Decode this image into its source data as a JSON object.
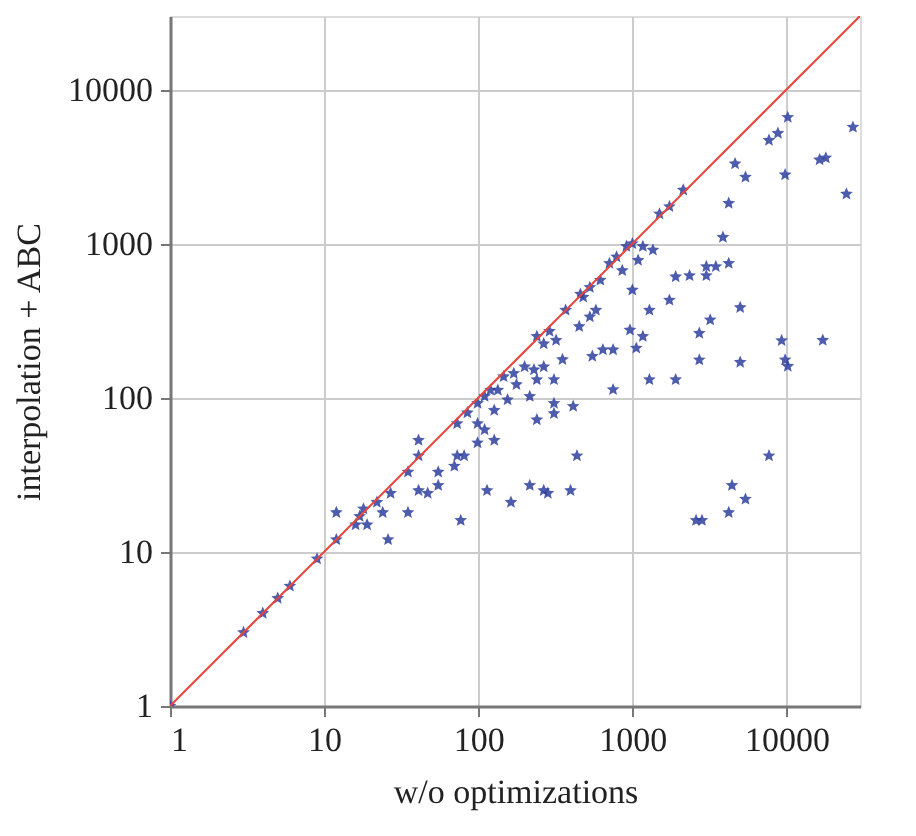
{
  "chart_data": {
    "type": "scatter",
    "xlabel": "w/o optimizations",
    "ylabel": "interpolation + ABC",
    "log": "xy",
    "xlim": [
      1,
      30000
    ],
    "ylim": [
      1,
      30000
    ],
    "xticks": [
      1,
      10,
      100,
      1000,
      10000
    ],
    "yticks": [
      1,
      10,
      100,
      1000,
      10000
    ],
    "grid": true,
    "series": [
      {
        "marker": "star",
        "color": "#2e3f9e",
        "x": [
          1,
          3,
          4,
          5,
          6,
          9,
          12,
          12,
          26,
          17,
          18,
          22,
          27,
          16,
          19,
          24,
          35,
          41,
          47,
          55,
          55,
          41,
          41,
          35,
          70,
          73,
          81,
          99,
          127,
          77,
          114,
          163,
          216,
          266,
          283,
          397,
          437,
          413,
          310,
          240,
          310,
          73,
          85,
          99,
          110,
          120,
          146,
          170,
          200,
          230,
          177,
          240,
          155,
          134,
          310,
          99,
          110,
          127,
          216,
          266,
          266,
          290,
          320,
          240,
          352,
          369,
          452,
          530,
          550,
          644,
          580,
          480,
          530,
          620,
          460,
          710,
          790,
          915,
          1000,
          1170,
          1360,
          1000,
          860,
          1090,
          1500,
          1740,
          2140,
          965,
          1170,
          1060,
          750,
          750,
          1290,
          1290,
          1740,
          1910,
          2350,
          1910,
          2720,
          2720,
          3020,
          3020,
          3480,
          4220,
          3200,
          3870,
          4220,
          4640,
          5420,
          5010,
          5010,
          2590,
          2830,
          4220,
          4430,
          5420,
          7700,
          7700,
          8800,
          10200,
          9800,
          9300,
          9800,
          10200,
          16400,
          18000,
          17200,
          24500,
          27000
        ],
        "values": [
          1,
          3,
          4,
          5,
          6,
          9,
          12,
          18,
          12,
          17,
          19,
          21,
          24,
          15,
          15,
          18,
          18,
          25,
          24,
          27,
          33,
          53,
          42,
          33,
          36,
          42,
          42,
          51,
          53,
          16,
          25,
          21,
          27,
          25,
          24,
          25,
          42,
          88,
          92,
          72,
          79,
          68,
          80,
          92,
          102,
          112,
          137,
          144,
          159,
          152,
          122,
          131,
          97,
          112,
          131,
          68,
          62,
          83,
          102,
          159,
          224,
          270,
          236,
          250,
          177,
          370,
          290,
          335,
          186,
          205,
          370,
          450,
          520,
          580,
          470,
          745,
          820,
          960,
          1000,
          960,
          910,
          500,
          670,
          780,
          1560,
          1740,
          2230,
          275,
          250,
          210,
          205,
          113,
          131,
          370,
          430,
          610,
          620,
          131,
          262,
          176,
          620,
          710,
          710,
          745,
          320,
          1100,
          1830,
          3300,
          2700,
          385,
          170,
          16,
          16,
          18,
          27,
          22,
          42,
          4690,
          5200,
          6600,
          2800,
          235,
          176,
          160,
          3500,
          3600,
          236,
          2100,
          5700
        ]
      },
      {
        "type": "line",
        "color": "#e8453c",
        "x": [
          1,
          30000
        ],
        "values": [
          1,
          30000
        ]
      }
    ]
  }
}
